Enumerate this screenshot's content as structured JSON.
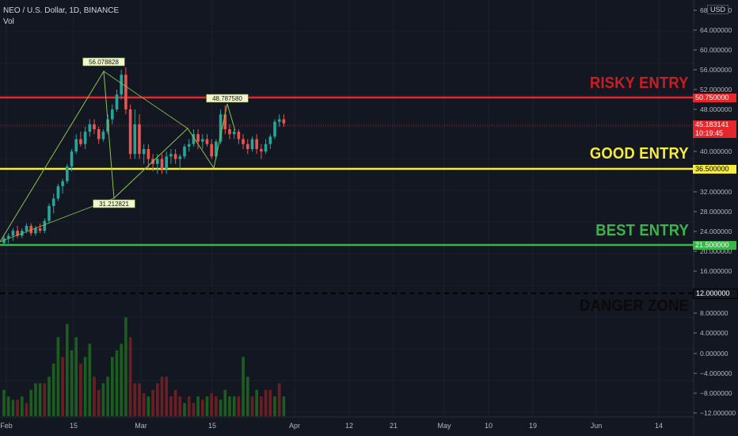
{
  "header": {
    "symbol_line": "NEO / U.S. Dollar, 1D, BINANCE",
    "volume_label": "Vol",
    "currency": "USD"
  },
  "annotations": {
    "risky": {
      "text": "RISKY ENTRY",
      "color": "#c81e23"
    },
    "good": {
      "text": "GOOD ENTRY",
      "color": "#f5ec3d"
    },
    "best": {
      "text": "BEST ENTRY",
      "color": "#3bb54a"
    },
    "danger": {
      "text": "DANGER ZONE",
      "color": "#0a0a0a"
    }
  },
  "price_tags": {
    "risky": "50.750000",
    "current": "45.183141",
    "countdown": "10:19:45",
    "good": "36.500000",
    "best": "21.500000",
    "danger": "12.000000"
  },
  "pattern_labels": {
    "peak": "56.078828",
    "trough": "31.212821",
    "second_peak": "48.787580"
  },
  "chart_data": {
    "type": "candlestick",
    "price_axis_ticks": [
      "68.000000",
      "64.000000",
      "60.000000",
      "56.000000",
      "52.000000",
      "48.000000",
      "40.000000",
      "36.000000",
      "32.000000",
      "28.000000",
      "24.000000",
      "20.000000",
      "16.000000",
      "12.000000",
      "8.000000",
      "4.000000",
      "0.000000",
      "−4.000000",
      "−8.000000",
      "−12.000000"
    ],
    "time_axis_ticks": [
      "Feb",
      "15",
      "Mar",
      "15",
      "Apr",
      "12",
      "21",
      "May",
      "10",
      "19",
      "Jun",
      "14"
    ],
    "horizontal_levels": [
      {
        "name": "risky",
        "value": 50.75,
        "color": "#e5262b",
        "style": "solid"
      },
      {
        "name": "good",
        "value": 36.5,
        "color": "#f5ec3d",
        "style": "solid"
      },
      {
        "name": "best",
        "value": 21.5,
        "color": "#3bb54a",
        "style": "solid"
      },
      {
        "name": "danger",
        "value": 12.0,
        "color": "#000000",
        "style": "dashed"
      }
    ],
    "current_price": 45.183141,
    "candles": [
      [
        21,
        22.5,
        20.5,
        22
      ],
      [
        22,
        23,
        21,
        22.5
      ],
      [
        22.5,
        24,
        21.5,
        23.5
      ],
      [
        23.5,
        24.5,
        22,
        22.5
      ],
      [
        22.5,
        24,
        22,
        23.5
      ],
      [
        23.5,
        25,
        23,
        24.5
      ],
      [
        24.5,
        25,
        22.5,
        23
      ],
      [
        23,
        24.5,
        22.5,
        24
      ],
      [
        24,
        25,
        23,
        23.5
      ],
      [
        23.5,
        26,
        23,
        25.5
      ],
      [
        25.5,
        29,
        25,
        28.5
      ],
      [
        28.5,
        31,
        27,
        30
      ],
      [
        30,
        33,
        29.5,
        32.5
      ],
      [
        32.5,
        34,
        31,
        33.5
      ],
      [
        33.5,
        37,
        33,
        36.5
      ],
      [
        36.5,
        40,
        35.5,
        39.5
      ],
      [
        39.5,
        43,
        39,
        42
      ],
      [
        42,
        43.5,
        40.5,
        41
      ],
      [
        41,
        44.5,
        40,
        43.5
      ],
      [
        43.5,
        46,
        42.5,
        45
      ],
      [
        45,
        46,
        43,
        44
      ],
      [
        44,
        44.5,
        41,
        42
      ],
      [
        42,
        44,
        41.5,
        43.5
      ],
      [
        43.5,
        47,
        43,
        46
      ],
      [
        46,
        49,
        45,
        48
      ],
      [
        48,
        52,
        47.5,
        51
      ],
      [
        51,
        56,
        50,
        55
      ],
      [
        55,
        56.5,
        47,
        48
      ],
      [
        48,
        49,
        38,
        39
      ],
      [
        39,
        48,
        38,
        45
      ],
      [
        45,
        47,
        38,
        39
      ],
      [
        39,
        41,
        37,
        40
      ],
      [
        40,
        41,
        36,
        38
      ],
      [
        38,
        39,
        35.5,
        37
      ],
      [
        37,
        39,
        35,
        38
      ],
      [
        38,
        39,
        35,
        36
      ],
      [
        36,
        39.5,
        35,
        38.5
      ],
      [
        38.5,
        40,
        37,
        39
      ],
      [
        39,
        40,
        37,
        38
      ],
      [
        38,
        39,
        36,
        38.5
      ],
      [
        38.5,
        41,
        38,
        40.5
      ],
      [
        40.5,
        42,
        39.5,
        41
      ],
      [
        41,
        44,
        40.5,
        43
      ],
      [
        43,
        44,
        40,
        41.5
      ],
      [
        41.5,
        43,
        40,
        42
      ],
      [
        42,
        43,
        40.5,
        41
      ],
      [
        41,
        42,
        38,
        38.5
      ],
      [
        38.5,
        42,
        38,
        41.5
      ],
      [
        41.5,
        48,
        41,
        47
      ],
      [
        47,
        48.8,
        43,
        44
      ],
      [
        44,
        45,
        42,
        43
      ],
      [
        43,
        44,
        42,
        43.5
      ],
      [
        43.5,
        44,
        41,
        42
      ],
      [
        42,
        43,
        40,
        41
      ],
      [
        41,
        42,
        39,
        40
      ],
      [
        40,
        42.5,
        39.5,
        42
      ],
      [
        42,
        43,
        39,
        40
      ],
      [
        40,
        41,
        38,
        39.5
      ],
      [
        39.5,
        42,
        39,
        41
      ],
      [
        41,
        43,
        40,
        42.5
      ],
      [
        42.5,
        46,
        42,
        45.5
      ],
      [
        45.5,
        47,
        44.5,
        46
      ],
      [
        46,
        47,
        44.5,
        45.2
      ]
    ],
    "volumes": [
      [
        4,
        1
      ],
      [
        3,
        1
      ],
      [
        2.5,
        1
      ],
      [
        2.5,
        0
      ],
      [
        3,
        1
      ],
      [
        2,
        0
      ],
      [
        4,
        1
      ],
      [
        5,
        1
      ],
      [
        5,
        1
      ],
      [
        5,
        0
      ],
      [
        6,
        1
      ],
      [
        8,
        1
      ],
      [
        12,
        1
      ],
      [
        9,
        0
      ],
      [
        14,
        1
      ],
      [
        10,
        1
      ],
      [
        12,
        1
      ],
      [
        8,
        0
      ],
      [
        9,
        1
      ],
      [
        11,
        1
      ],
      [
        6,
        0
      ],
      [
        4,
        0
      ],
      [
        5,
        1
      ],
      [
        6,
        1
      ],
      [
        9,
        1
      ],
      [
        10,
        1
      ],
      [
        11,
        1
      ],
      [
        15,
        1
      ],
      [
        12,
        0
      ],
      [
        5,
        0
      ],
      [
        5,
        0
      ],
      [
        3.5,
        0
      ],
      [
        3,
        1
      ],
      [
        4,
        0
      ],
      [
        5,
        0
      ],
      [
        6,
        0
      ],
      [
        6,
        0
      ],
      [
        3,
        0
      ],
      [
        4,
        0
      ],
      [
        3,
        0
      ],
      [
        2,
        1
      ],
      [
        3,
        0
      ],
      [
        2,
        0
      ],
      [
        3,
        1
      ],
      [
        2.5,
        0
      ],
      [
        3,
        1
      ],
      [
        3.5,
        0
      ],
      [
        3,
        0
      ],
      [
        2.5,
        1
      ],
      [
        4,
        1
      ],
      [
        3,
        1
      ],
      [
        3,
        1
      ],
      [
        3,
        0
      ],
      [
        9,
        1
      ],
      [
        6,
        1
      ],
      [
        3,
        0
      ],
      [
        4,
        1
      ],
      [
        3,
        0
      ],
      [
        4,
        0
      ],
      [
        4,
        0
      ],
      [
        3,
        1
      ],
      [
        5,
        0
      ],
      [
        3,
        1
      ]
    ]
  }
}
